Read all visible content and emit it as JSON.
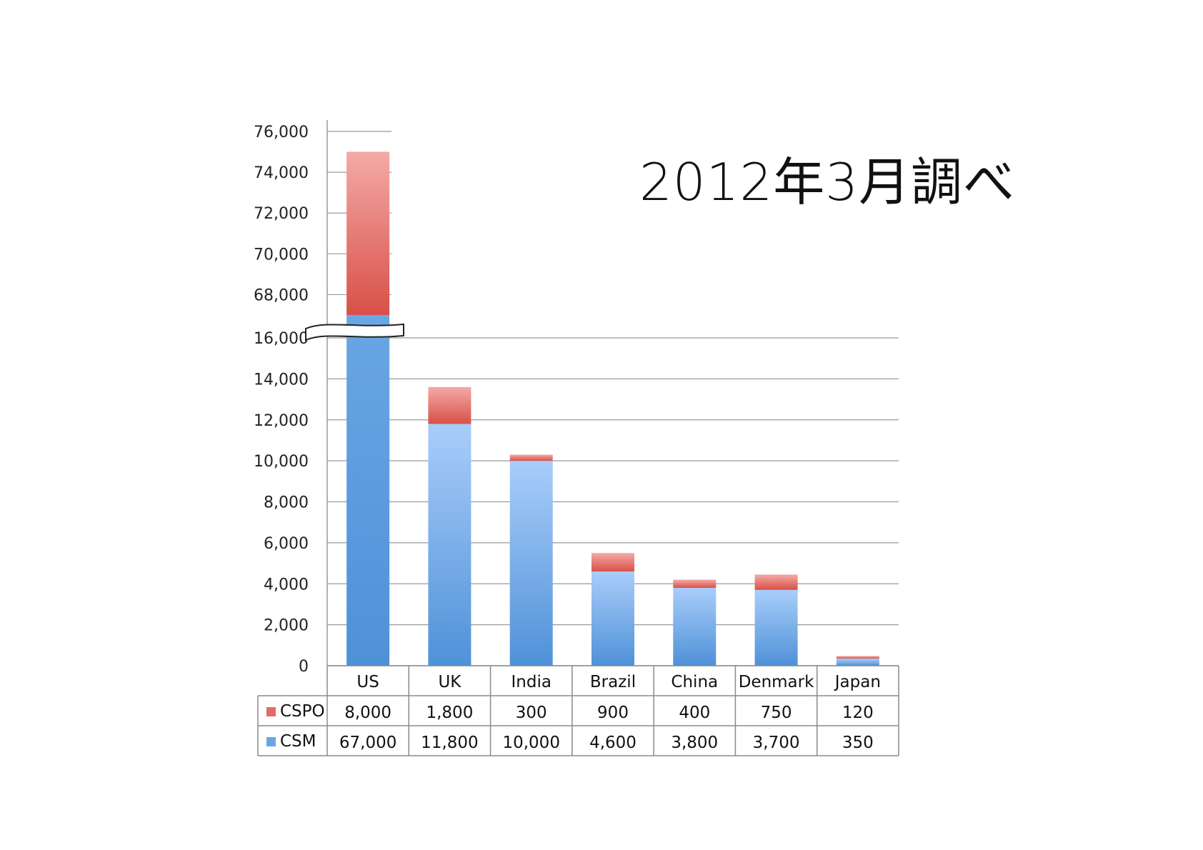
{
  "annotation": "2012年3月調べ",
  "chart_data": {
    "type": "bar",
    "stacked": true,
    "broken_axis": true,
    "categories": [
      "US",
      "UK",
      "India",
      "Brazil",
      "China",
      "Denmark",
      "Japan"
    ],
    "series": [
      {
        "name": "CSM",
        "values": [
          67000,
          11800,
          10000,
          4600,
          3800,
          3700,
          350
        ],
        "color": "#6aa6e4"
      },
      {
        "name": "CSPO",
        "values": [
          8000,
          1800,
          300,
          900,
          400,
          750,
          120
        ],
        "color": "#e06e66"
      }
    ],
    "ylim": [
      0,
      76000
    ],
    "y_lower_range": [
      0,
      16000
    ],
    "y_upper_range": [
      67000,
      76000
    ],
    "yticks": [
      "0",
      "2,000",
      "4,000",
      "6,000",
      "8,000",
      "10,000",
      "12,000",
      "14,000",
      "16,000",
      "68,000",
      "70,000",
      "72,000",
      "74,000",
      "76,000"
    ],
    "table": {
      "CSPO": [
        "8,000",
        "1,800",
        "300",
        "900",
        "400",
        "750",
        "120"
      ],
      "CSM": [
        "67,000",
        "11,800",
        "10,000",
        "4,600",
        "3,800",
        "3,700",
        "350"
      ]
    },
    "grid": true,
    "legend": "data-table"
  }
}
